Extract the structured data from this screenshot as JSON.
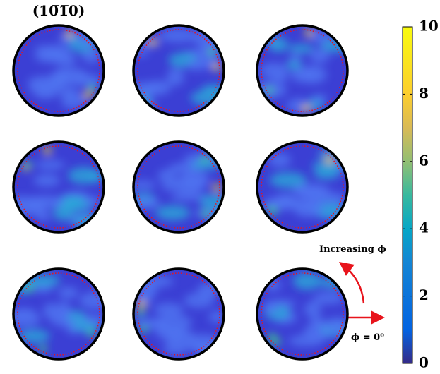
{
  "panels": [
    {
      "label": "(10̅1̅0)"
    }
  ],
  "colorbar": {
    "ylim": [
      0,
      10
    ],
    "ticks": [
      0,
      2,
      4,
      6,
      8,
      10
    ]
  },
  "annotations": {
    "increasing": "Increasing ϕ",
    "phi_zero": "ϕ = 0⁰"
  }
}
